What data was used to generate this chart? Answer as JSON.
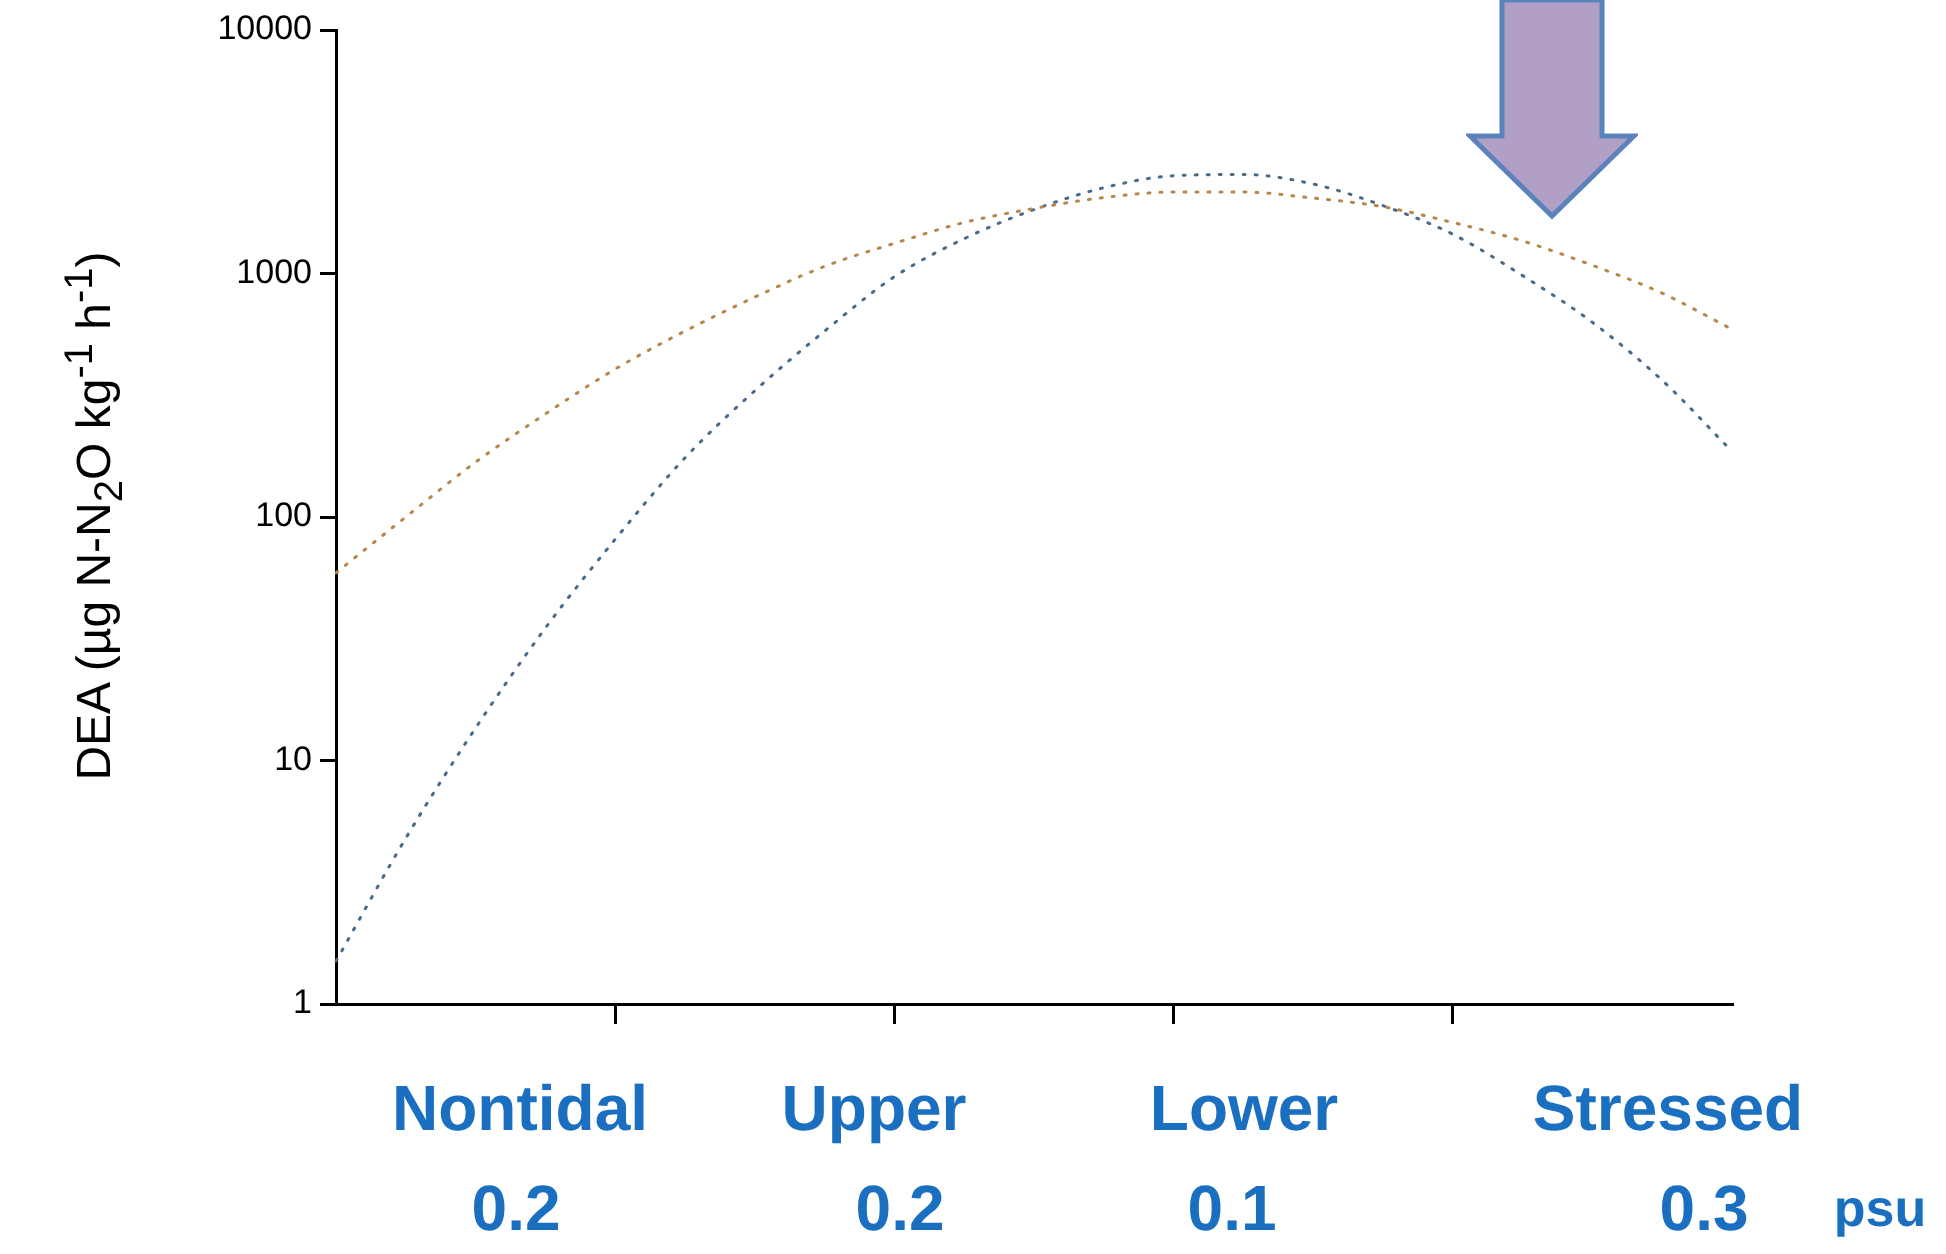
{
  "chart_data": {
    "type": "line",
    "ylabel": "DEA  (µg N-N$_{2}$O kg$^{-1}$ h$^{-1}$)",
    "categories": [
      null,
      null,
      null,
      null,
      null,
      null,
      null,
      null,
      null,
      null,
      null,
      null,
      null,
      null,
      null,
      null,
      null,
      null,
      null,
      null,
      null
    ],
    "log": "y",
    "ylim": [
      1,
      10000
    ],
    "yticks": [
      1,
      10,
      100,
      1000,
      10000
    ],
    "grid": false,
    "legend": false,
    "marker": "none",
    "line_style": "dotted",
    "tick_labels": "y",
    "annotations": [
      "Nontidal\n0.2",
      "Upper\n0.2",
      "Lower\n0.1",
      "Stressed\n0.3",
      "psu"
    ],
    "series": [
      {
        "color": "#b8864b",
        "values": [
          59,
          100,
          168,
          265,
          405,
          580,
          800,
          1070,
          1330,
          1620,
          1850,
          2050,
          2160,
          2160,
          2040,
          1880,
          1620,
          1360,
          1080,
          830,
          590
        ]
      },
      {
        "color": "#4a6a8a",
        "values": [
          1.5,
          4.8,
          13.6,
          35,
          81,
          175,
          330,
          580,
          970,
          1390,
          1830,
          2250,
          2520,
          2550,
          2330,
          1900,
          1450,
          980,
          630,
          364,
          186
        ]
      }
    ]
  }
}
